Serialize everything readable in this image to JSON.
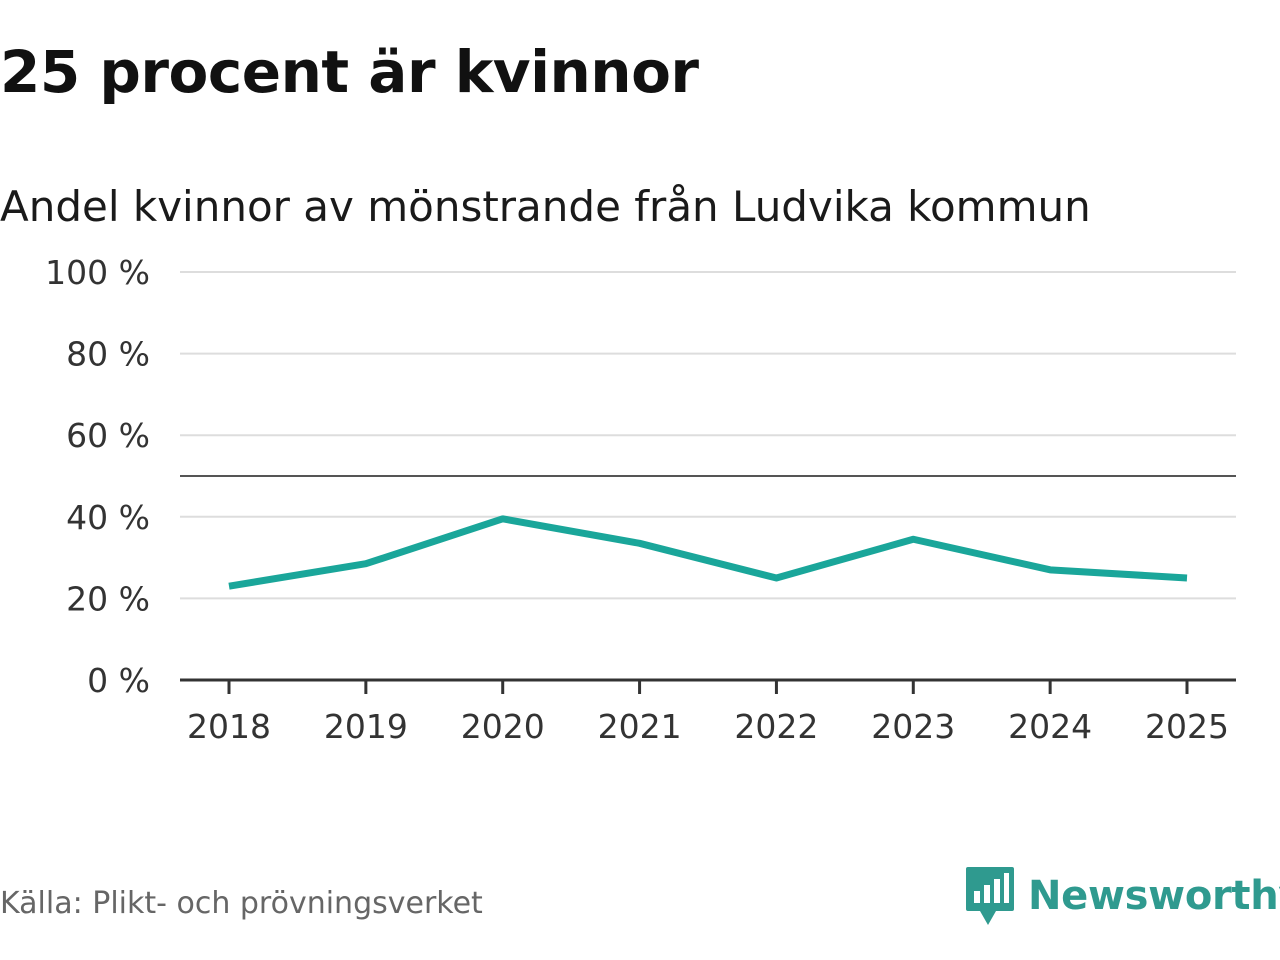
{
  "header": {
    "title": "25 procent är kvinnor",
    "subtitle": "Andel kvinnor av mönstrande från Ludvika kommun"
  },
  "footer": {
    "source": "Källa: Plikt- och prövningsverket",
    "brand": "Newsworthy"
  },
  "colors": {
    "line": "#1aa69a",
    "grid": "#dddddd",
    "reference": "#555555",
    "axis": "#333333",
    "brand": "#2f9a8f"
  },
  "icons": {
    "brand_logo": "newsworthy-logo-icon"
  },
  "chart_data": {
    "type": "line",
    "title": "Andel kvinnor av mönstrande från Ludvika kommun",
    "xlabel": "",
    "ylabel": "",
    "x": [
      "2018",
      "2019",
      "2020",
      "2021",
      "2022",
      "2023",
      "2024",
      "2025"
    ],
    "series": [
      {
        "name": "Andel kvinnor",
        "values": [
          23,
          28.5,
          39.5,
          33.5,
          25,
          34.5,
          27,
          25
        ]
      }
    ],
    "ylim": [
      0,
      100
    ],
    "yticks": [
      0,
      20,
      40,
      60,
      80,
      100
    ],
    "ytick_labels": [
      "0 %",
      "20 %",
      "40 %",
      "60 %",
      "80 %",
      "100 %"
    ],
    "reference_line": 50,
    "grid": true,
    "legend": "none"
  }
}
